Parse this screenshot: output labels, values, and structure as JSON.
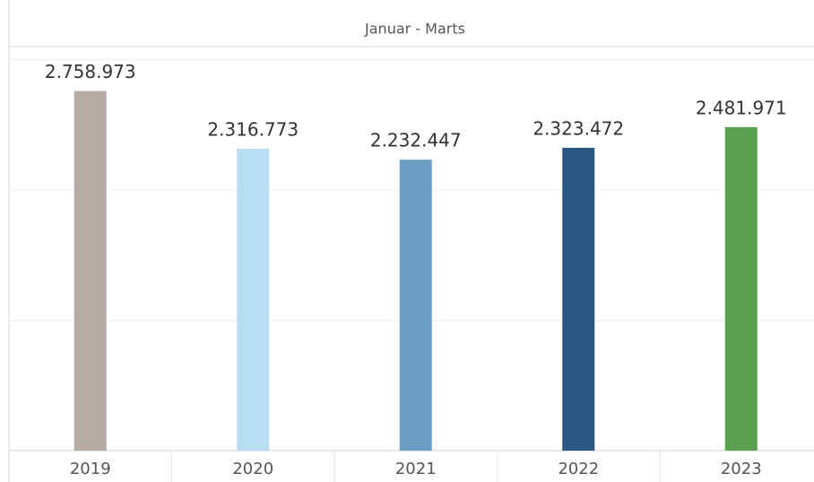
{
  "chart_data": {
    "type": "bar",
    "title": "Januar - Marts",
    "categories": [
      "2019",
      "2020",
      "2021",
      "2022",
      "2023"
    ],
    "values": [
      2758973,
      2316773,
      2232447,
      2323472,
      2481971
    ],
    "value_labels": [
      "2.758.973",
      "2.316.773",
      "2.232.447",
      "2.323.472",
      "2.481.971"
    ],
    "colors": [
      "#b5aba4",
      "#b9ddf1",
      "#6a9ec5",
      "#2a5783",
      "#59a14f"
    ],
    "ylim": [
      0,
      3100000
    ],
    "yticks": [
      0,
      1000000,
      2000000,
      3000000
    ],
    "grid": true
  }
}
